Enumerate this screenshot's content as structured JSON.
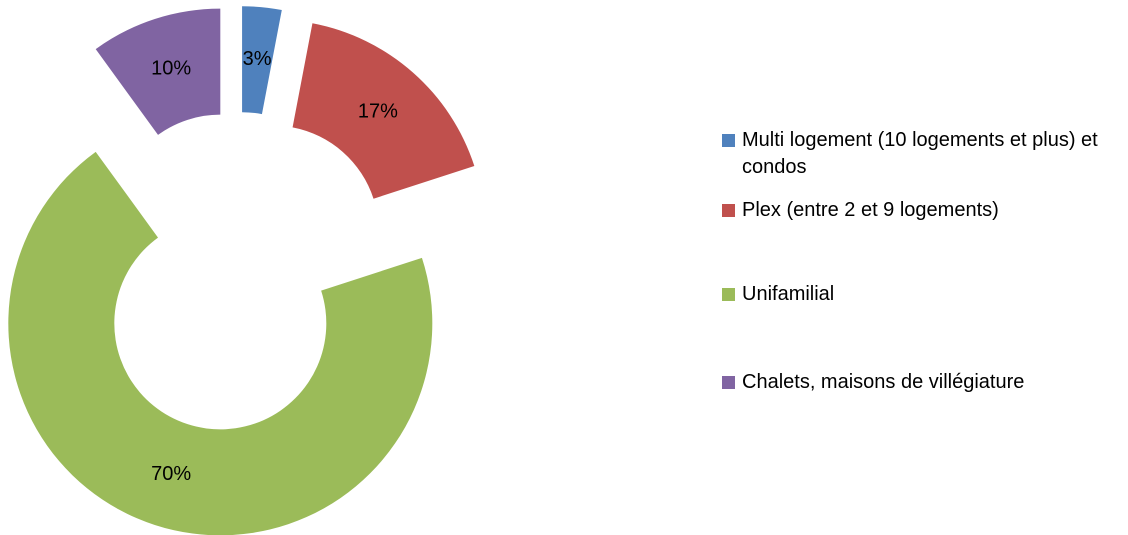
{
  "chart_data": {
    "type": "donut",
    "categories": [
      "Multi logement (10 logements et plus) et condos",
      "Plex (entre 2 et 9 logements)",
      "Unifamilial",
      "Chalets, maisons de villégiature"
    ],
    "values": [
      3,
      17,
      70,
      10
    ],
    "value_labels": [
      "3%",
      "17%",
      "70%",
      "10%"
    ],
    "colors": [
      "#4f81bd",
      "#c0504d",
      "#9bbb59",
      "#8064a2"
    ],
    "legend": "right"
  }
}
